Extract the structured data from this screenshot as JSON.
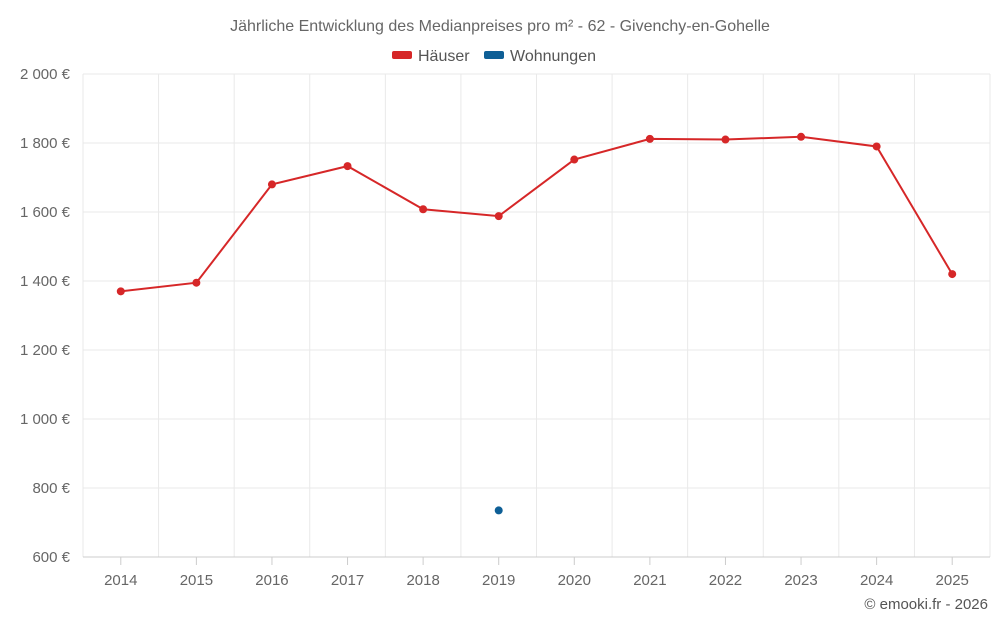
{
  "chart_data": {
    "type": "line",
    "title": "Jährliche Entwicklung des Medianpreises pro m² - 62 - Givenchy-en-Gohelle",
    "xlabel": "",
    "ylabel": "",
    "categories": [
      "2014",
      "2015",
      "2016",
      "2017",
      "2018",
      "2019",
      "2020",
      "2021",
      "2022",
      "2023",
      "2024",
      "2025"
    ],
    "ylim": [
      600,
      2000
    ],
    "yticks": [
      600,
      800,
      1000,
      1200,
      1400,
      1600,
      1800,
      2000
    ],
    "ytick_labels": [
      "600 €",
      "800 €",
      "1 000 €",
      "1 200 €",
      "1 400 €",
      "1 600 €",
      "1 800 €",
      "2 000 €"
    ],
    "grid": true,
    "legend_position": "top-center",
    "series": [
      {
        "name": "Häuser",
        "color": "#d62728",
        "values": [
          1370,
          1395,
          1680,
          1733,
          1608,
          1588,
          1752,
          1812,
          1810,
          1818,
          1790,
          1420
        ]
      },
      {
        "name": "Wohnungen",
        "color": "#0e5f96",
        "values": [
          null,
          null,
          null,
          null,
          null,
          735,
          null,
          null,
          null,
          null,
          null,
          null
        ]
      }
    ],
    "credit": "© emooki.fr - 2026"
  }
}
